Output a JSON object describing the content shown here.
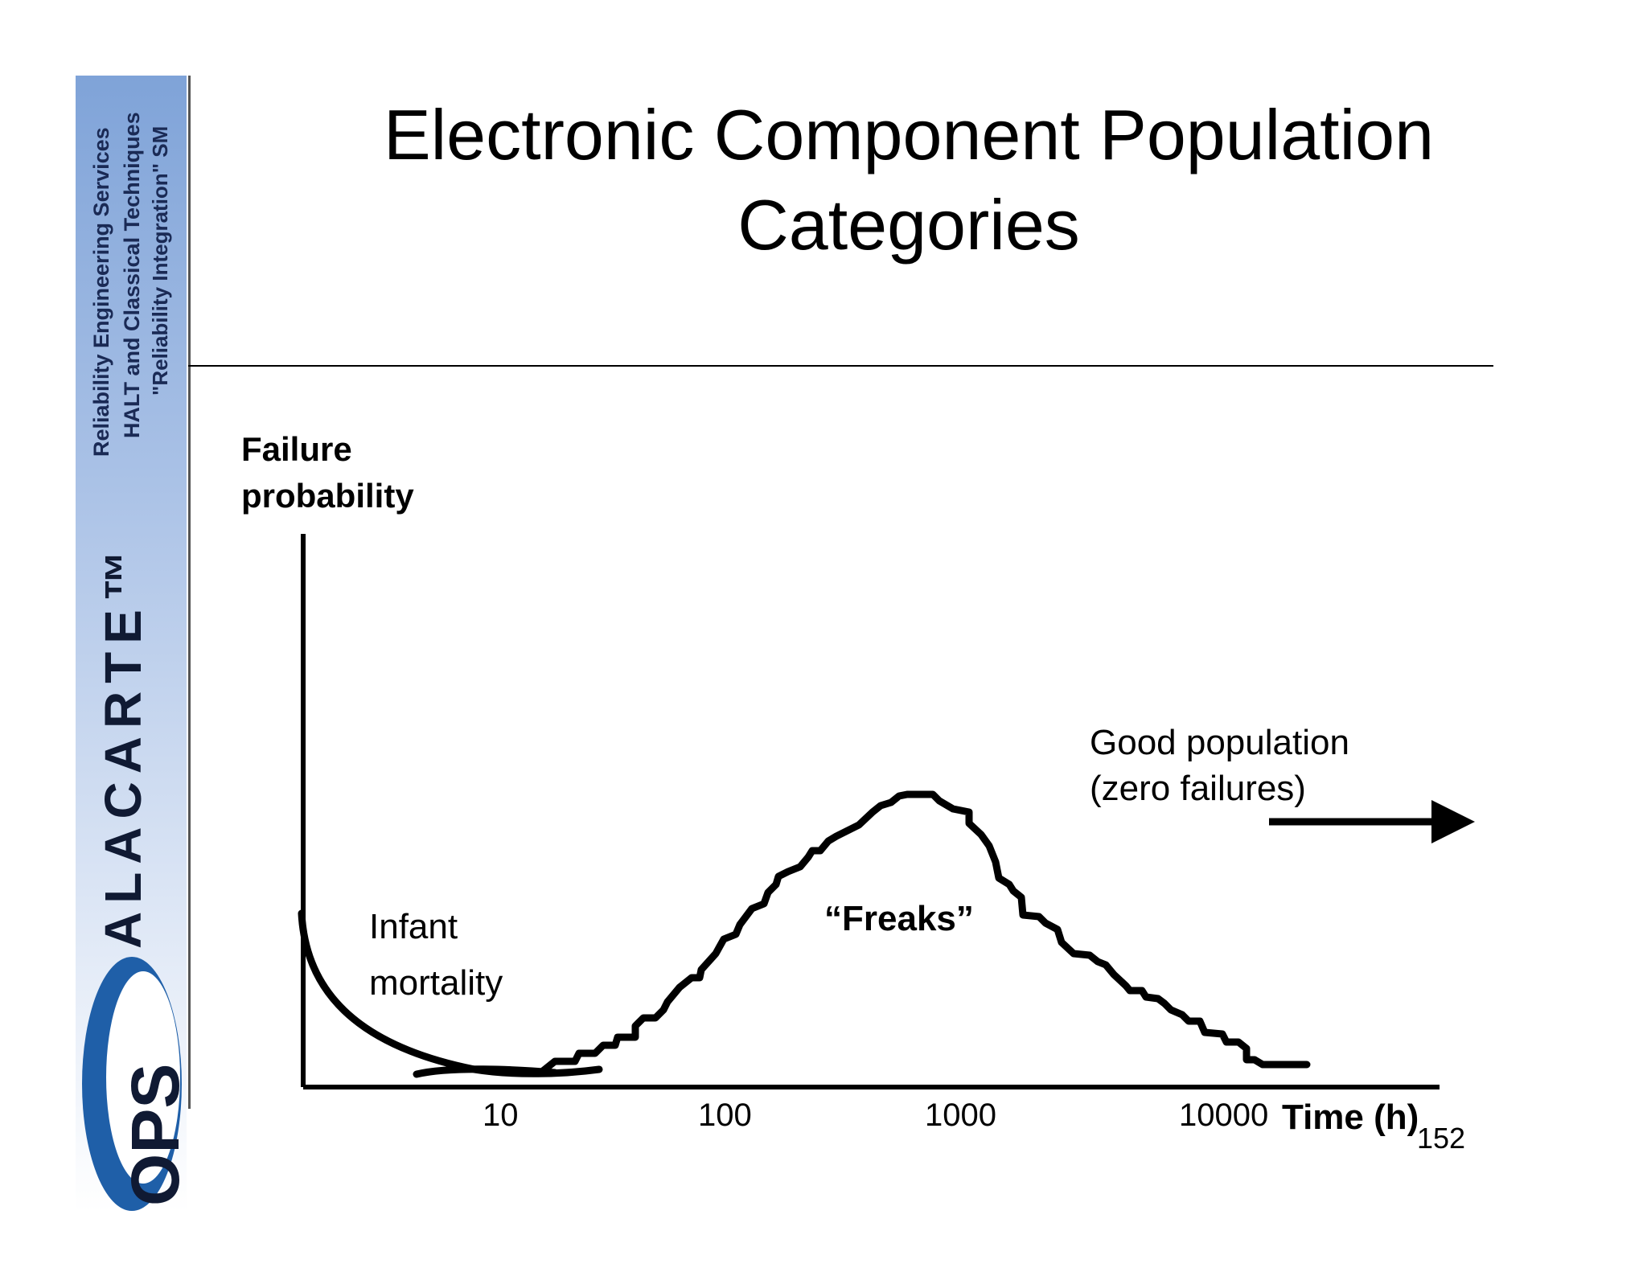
{
  "sidebar": {
    "service_line1": "Reliability Engineering Services",
    "service_line2": "HALT and Classical Techniques",
    "service_line3": "\"Reliability Integration\" SM",
    "brand": "ALACARTE™",
    "logo_text": "OPS",
    "colors": {
      "top": "#7fa3d8",
      "logo_blue": "#1f5fa8",
      "text": "#1a2a55"
    }
  },
  "slide": {
    "title": "Electronic Component Population Categories",
    "page_number": "152"
  },
  "diagram": {
    "y_axis_label": "Failure probability",
    "x_axis_label": "Time (h)",
    "x_ticks": [
      "10",
      "100",
      "1000",
      "10000"
    ],
    "annotations": {
      "infant": "Infant mortality",
      "freaks": "“Freaks”",
      "good": "Good population (zero failures)"
    }
  }
}
